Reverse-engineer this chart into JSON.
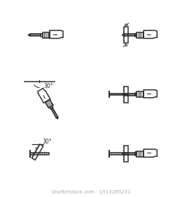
{
  "background_color": "#ffffff",
  "line_color": "#2d2d2d",
  "line_width": 1.1,
  "fig_width": 2.6,
  "fig_height": 2.8,
  "watermark": "shutterstock.com · 1913269231",
  "watermark_color": "#aaaaaa",
  "watermark_fontsize": 5.0
}
